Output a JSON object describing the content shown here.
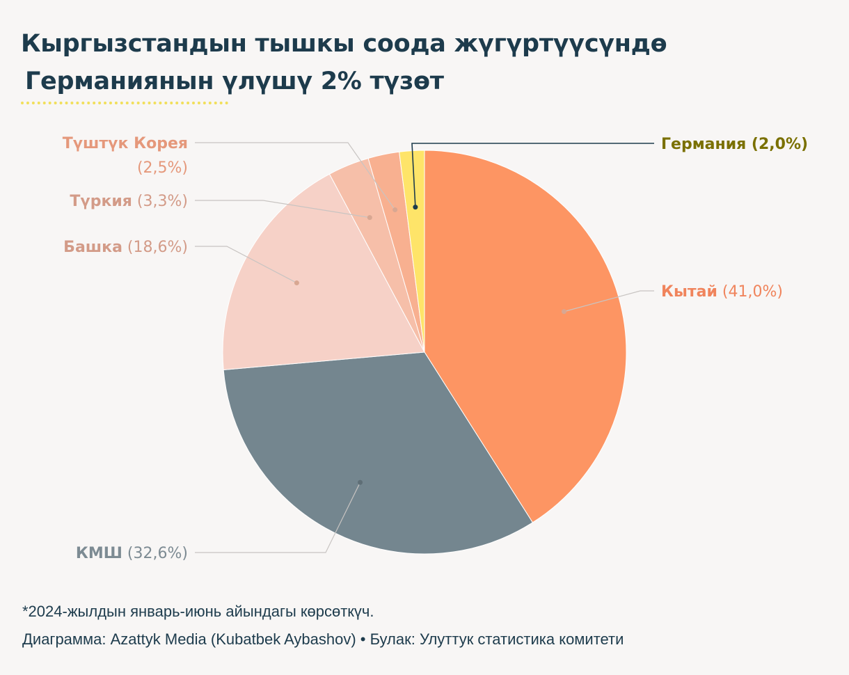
{
  "title_line1": "Кыргызстандын тышкы соода жүгүртүүсүндө",
  "title_line2": "Германиянын  үлүшү 2% түзөт",
  "footnote": "*2024-жылдын январь-июнь айындагы көрсөткүч.",
  "credit": "Диаграмма: Azattyk Media (Kubatbek Aybashov) • Булак: Улуттук статистика комитети",
  "chart_data": {
    "type": "pie",
    "unit": "%",
    "slices": [
      {
        "name": "Кытай",
        "label": "(41,0%)",
        "value": 41.0,
        "color": "#fd9563",
        "name_color": "#f0845c",
        "pct_color": "#f0845c",
        "bold_pct": false,
        "label_side": "right"
      },
      {
        "name": "КМШ",
        "label": "(32,6%)",
        "value": 32.6,
        "color": "#74868f",
        "name_color": "#7d8b93",
        "pct_color": "#7d8b93",
        "bold_pct": false,
        "label_side": "left"
      },
      {
        "name": "Башка",
        "label": "(18,6%)",
        "value": 18.6,
        "color": "#f6d1c7",
        "name_color": "#d39b88",
        "pct_color": "#d39b88",
        "bold_pct": false,
        "label_side": "left"
      },
      {
        "name": "Түркия",
        "label": "(3,3%)",
        "value": 3.3,
        "color": "#f6bfa9",
        "name_color": "#d39b88",
        "pct_color": "#d39b88",
        "bold_pct": false,
        "label_side": "left"
      },
      {
        "name": "Түштүк Корея",
        "label": "(2,5%)",
        "value": 2.5,
        "color": "#f8b090",
        "name_color": "#e5987b",
        "pct_color": "#e5987b",
        "bold_pct": false,
        "label_side": "left"
      },
      {
        "name": "Германия",
        "label": "(2,0%)",
        "value": 2.0,
        "color": "#fee469",
        "name_color": "#7a7000",
        "pct_color": "#7a7000",
        "bold_pct": true,
        "label_side": "right"
      }
    ]
  }
}
